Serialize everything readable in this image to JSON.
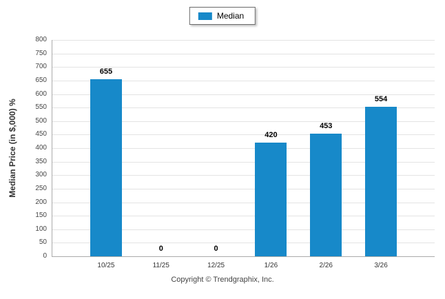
{
  "legend": {
    "label": "Median",
    "color": "#1789c9"
  },
  "footer": "Copyright © Trendgraphix, Inc.",
  "chart_data": {
    "type": "bar",
    "title": "",
    "categories": [
      "10/25",
      "11/25",
      "12/25",
      "1/26",
      "2/26",
      "3/26"
    ],
    "values": [
      655,
      0,
      0,
      420,
      453,
      554
    ],
    "xlabel": "",
    "ylabel": "Median Price (in $,000) %",
    "ylim": [
      0,
      800
    ],
    "ytick_step": 50,
    "grid": true,
    "legend_position": "top-center",
    "bar_color": "#1789c9",
    "value_labels": true
  }
}
